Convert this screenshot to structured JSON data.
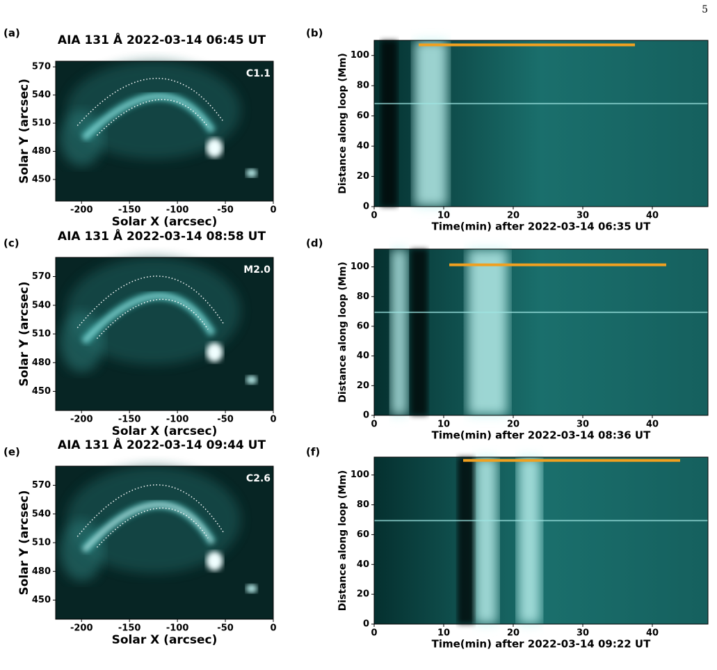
{
  "page_number": "5",
  "chart_data": [
    {
      "type": "image",
      "panel_label": "(a)",
      "title": "AIA 131 Å 2022-03-14 06:45 UT",
      "annotation": "C1.1",
      "xlabel": "Solar X (arcsec)",
      "ylabel": "Solar Y (arcsec)",
      "xlim": [
        -227,
        0
      ],
      "ylim": [
        427,
        576
      ],
      "xticks": [
        -200,
        -150,
        -100,
        -50,
        0
      ],
      "yticks": [
        450,
        480,
        510,
        540,
        570
      ]
    },
    {
      "type": "time-distance",
      "panel_label": "(b)",
      "xlabel": "Time(min) after 2022-03-14 06:35 UT",
      "ylabel": "Distance along loop (Mm)",
      "xlim": [
        0,
        48
      ],
      "ylim": [
        0,
        110
      ],
      "xticks": [
        0,
        10,
        20,
        30,
        40
      ],
      "yticks": [
        0,
        20,
        40,
        60,
        80,
        100
      ],
      "interval": {
        "x": [
          6.4,
          37.5
        ],
        "y": 107,
        "color": "#f0a020"
      }
    },
    {
      "type": "image",
      "panel_label": "(c)",
      "title": "AIA 131 Å 2022-03-14 08:58 UT",
      "annotation": "M2.0",
      "xlabel": "Solar X (arcsec)",
      "ylabel": "Solar Y (arcsec)",
      "xlim": [
        -227,
        0
      ],
      "ylim": [
        430,
        590
      ],
      "xticks": [
        -200,
        -150,
        -100,
        -50,
        0
      ],
      "yticks": [
        450,
        480,
        510,
        540,
        570
      ]
    },
    {
      "type": "time-distance",
      "panel_label": "(d)",
      "xlabel": "Time(min) after 2022-03-14 08:36 UT",
      "ylabel": "Distance along loop (Mm)",
      "xlim": [
        0,
        48
      ],
      "ylim": [
        0,
        112
      ],
      "xticks": [
        0,
        10,
        20,
        30,
        40
      ],
      "yticks": [
        0,
        20,
        40,
        60,
        80,
        100
      ],
      "interval": {
        "x": [
          10.8,
          42
        ],
        "y": 101.4,
        "color": "#f0a020"
      }
    },
    {
      "type": "image",
      "panel_label": "(e)",
      "title": "AIA 131 Å 2022-03-14 09:44 UT",
      "annotation": "C2.6",
      "xlabel": "Solar X (arcsec)",
      "ylabel": "Solar Y (arcsec)",
      "xlim": [
        -227,
        0
      ],
      "ylim": [
        430,
        590
      ],
      "xticks": [
        -200,
        -150,
        -100,
        -50,
        0
      ],
      "yticks": [
        450,
        480,
        510,
        540,
        570
      ]
    },
    {
      "type": "time-distance",
      "panel_label": "(f)",
      "xlabel": "Time(min) after 2022-03-14 09:22 UT",
      "ylabel": "Distance along loop (Mm)",
      "xlim": [
        0,
        48
      ],
      "ylim": [
        0,
        112
      ],
      "xticks": [
        0,
        10,
        20,
        30,
        40
      ],
      "yticks": [
        0,
        20,
        40,
        60,
        80,
        100
      ],
      "interval": {
        "x": [
          12.8,
          44
        ],
        "y": 109.8,
        "color": "#f0a020"
      }
    }
  ]
}
